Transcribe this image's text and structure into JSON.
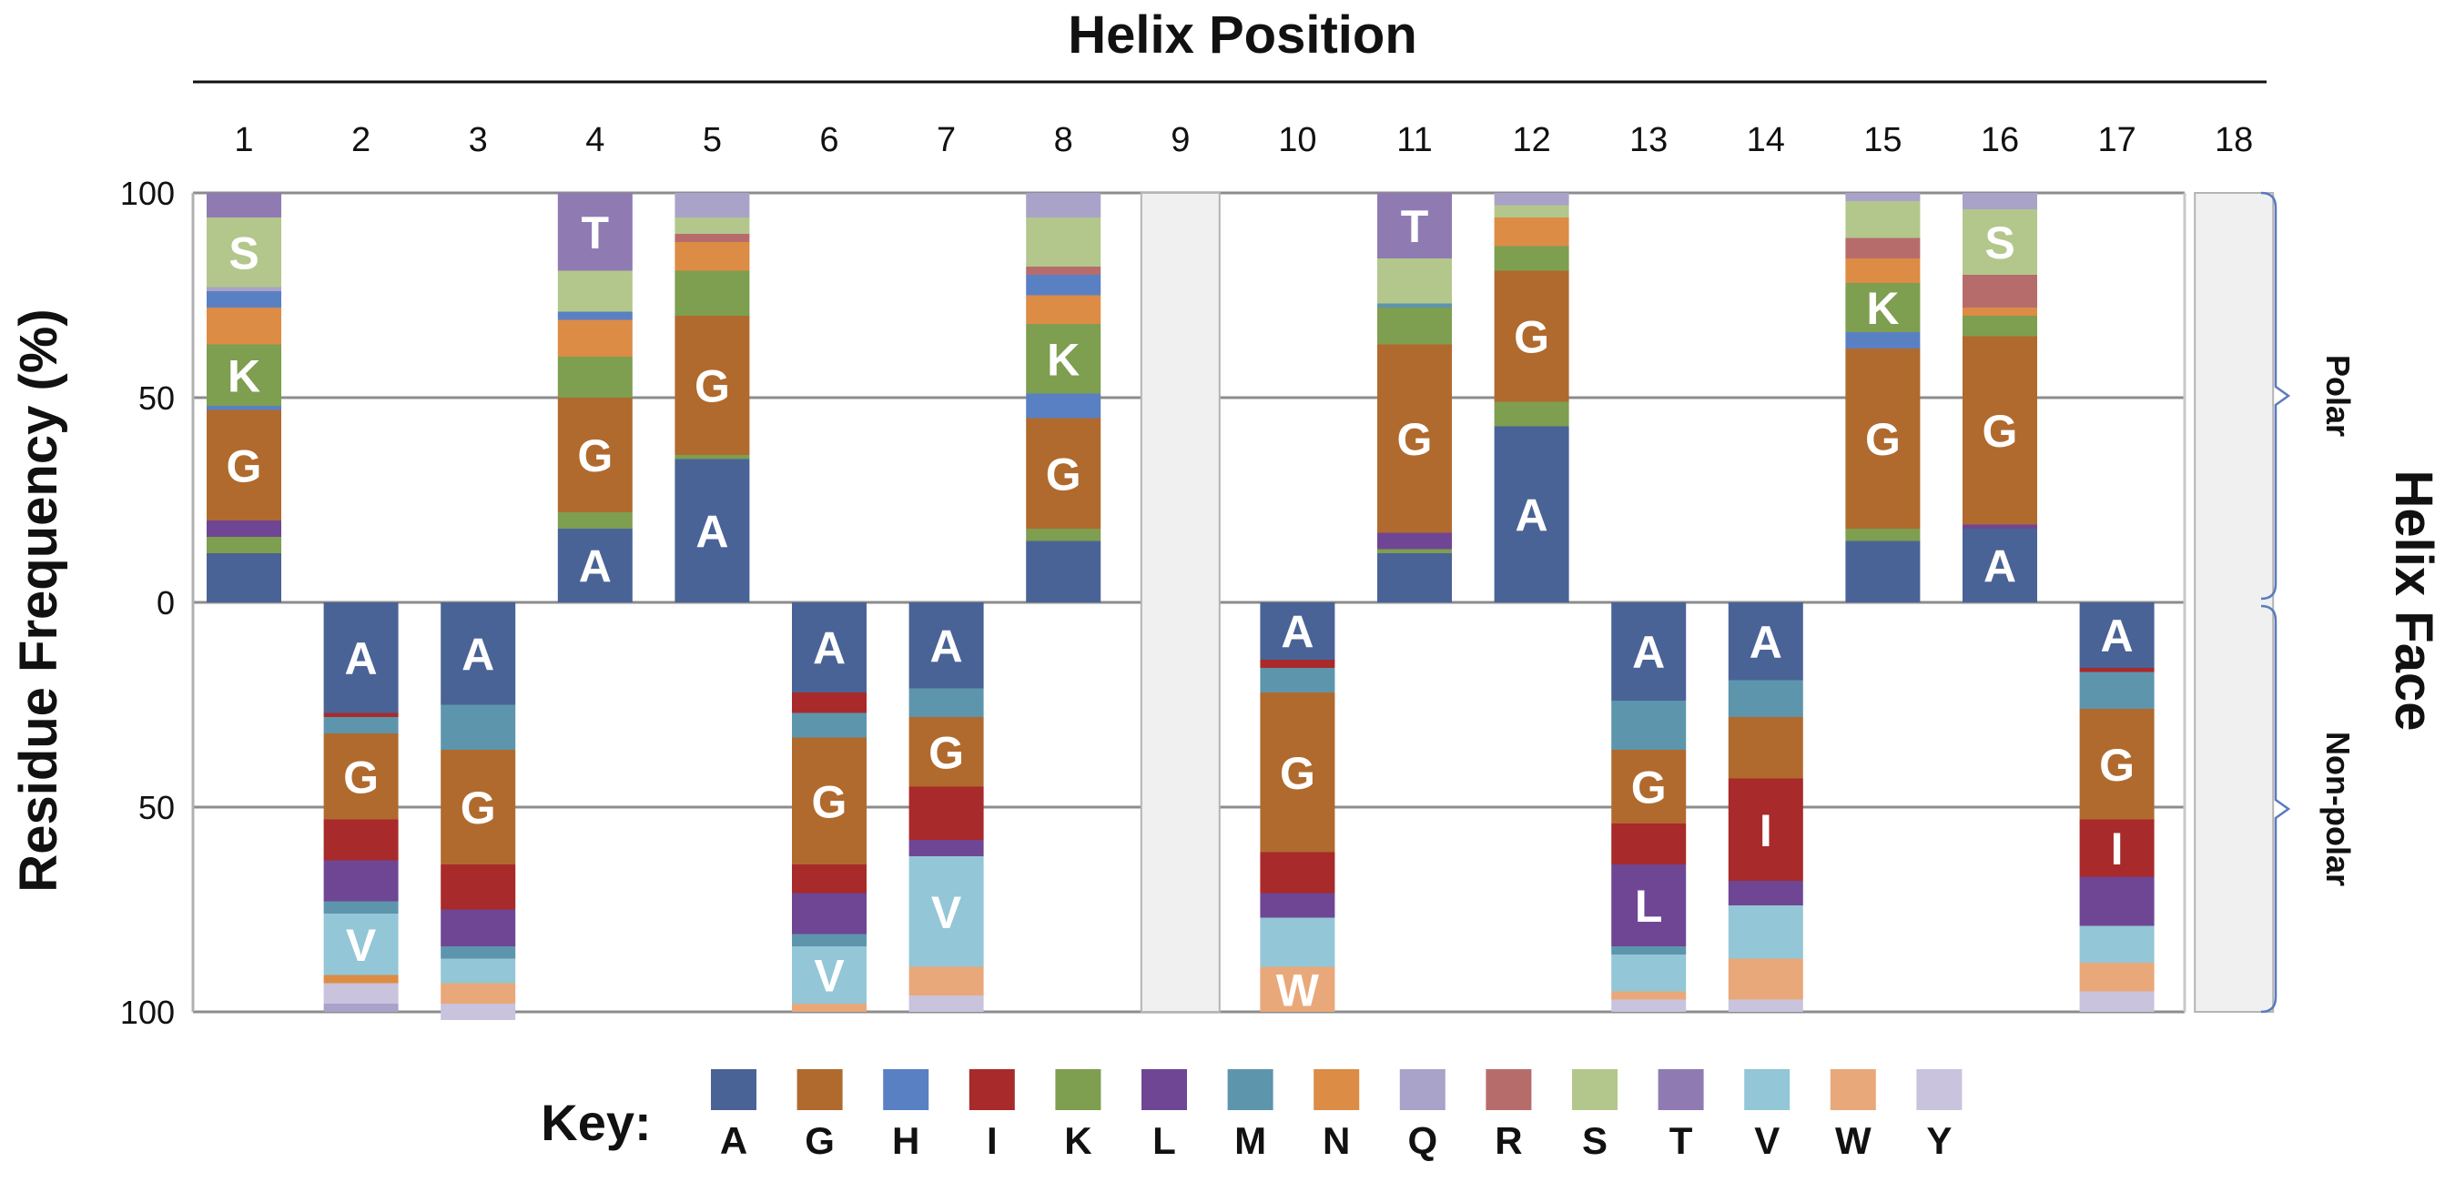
{
  "chart_data": {
    "type": "bar",
    "title": "Helix Position",
    "ylabel": "Residue Frequency  (%)",
    "right_label": "Helix Face",
    "ylim": [
      0,
      100
    ],
    "y_ticks_polar": [
      "100",
      "50",
      "0"
    ],
    "y_ticks_nonpolar": [
      "0",
      "50",
      "100"
    ],
    "categories": [
      "1",
      "2",
      "3",
      "4",
      "5",
      "6",
      "7",
      "8",
      "9",
      "10",
      "11",
      "12",
      "13",
      "14",
      "15",
      "16",
      "17",
      "18"
    ],
    "faces": [
      {
        "id": "polar",
        "label": "Polar",
        "positions": [
          "1",
          "4",
          "5",
          "8",
          "11",
          "12",
          "15",
          "16"
        ]
      },
      {
        "id": "nonpolar",
        "label": "Non-polar",
        "positions": [
          "2",
          "3",
          "6",
          "7",
          "10",
          "13",
          "14",
          "17"
        ]
      }
    ],
    "blank_positions": [
      "9",
      "18"
    ],
    "key_title": "Key:",
    "residues": [
      {
        "code": "A",
        "color": "#4a6396"
      },
      {
        "code": "G",
        "color": "#b06a2e"
      },
      {
        "code": "H",
        "color": "#5a80c4"
      },
      {
        "code": "I",
        "color": "#a82a2a"
      },
      {
        "code": "K",
        "color": "#7e9e50"
      },
      {
        "code": "L",
        "color": "#6f4694"
      },
      {
        "code": "M",
        "color": "#5d95ad"
      },
      {
        "code": "N",
        "color": "#dc8c45"
      },
      {
        "code": "Q",
        "color": "#a9a2c9"
      },
      {
        "code": "R",
        "color": "#b76c6c"
      },
      {
        "code": "S",
        "color": "#b3c78c"
      },
      {
        "code": "T",
        "color": "#8f7bb2"
      },
      {
        "code": "V",
        "color": "#93c6d6"
      },
      {
        "code": "W",
        "color": "#e9a87a"
      },
      {
        "code": "Y",
        "color": "#c9c3de"
      }
    ],
    "series": [
      {
        "position": "1",
        "face": "polar",
        "segments": [
          {
            "residue": "A",
            "value": 12,
            "label": ""
          },
          {
            "residue": "K",
            "value": 4,
            "label": ""
          },
          {
            "residue": "L",
            "value": 4,
            "label": ""
          },
          {
            "residue": "G",
            "value": 27,
            "label": "G"
          },
          {
            "residue": "H",
            "value": 1,
            "label": ""
          },
          {
            "residue": "K",
            "value": 15,
            "label": "K"
          },
          {
            "residue": "N",
            "value": 9,
            "label": ""
          },
          {
            "residue": "H",
            "value": 4,
            "label": ""
          },
          {
            "residue": "Q",
            "value": 1,
            "label": ""
          },
          {
            "residue": "S",
            "value": 17,
            "label": "S"
          },
          {
            "residue": "T",
            "value": 6,
            "label": ""
          }
        ]
      },
      {
        "position": "4",
        "face": "polar",
        "segments": [
          {
            "residue": "A",
            "value": 18,
            "label": "A"
          },
          {
            "residue": "K",
            "value": 4,
            "label": ""
          },
          {
            "residue": "G",
            "value": 28,
            "label": "G"
          },
          {
            "residue": "K",
            "value": 10,
            "label": ""
          },
          {
            "residue": "N",
            "value": 9,
            "label": ""
          },
          {
            "residue": "H",
            "value": 2,
            "label": ""
          },
          {
            "residue": "S",
            "value": 10,
            "label": ""
          },
          {
            "residue": "T",
            "value": 19,
            "label": "T"
          }
        ]
      },
      {
        "position": "5",
        "face": "polar",
        "segments": [
          {
            "residue": "A",
            "value": 35,
            "label": "A"
          },
          {
            "residue": "K",
            "value": 1,
            "label": ""
          },
          {
            "residue": "G",
            "value": 34,
            "label": "G"
          },
          {
            "residue": "K",
            "value": 11,
            "label": ""
          },
          {
            "residue": "N",
            "value": 7,
            "label": ""
          },
          {
            "residue": "R",
            "value": 2,
            "label": ""
          },
          {
            "residue": "S",
            "value": 4,
            "label": ""
          },
          {
            "residue": "Q",
            "value": 6,
            "label": ""
          }
        ]
      },
      {
        "position": "8",
        "face": "polar",
        "segments": [
          {
            "residue": "A",
            "value": 15,
            "label": ""
          },
          {
            "residue": "K",
            "value": 3,
            "label": ""
          },
          {
            "residue": "G",
            "value": 27,
            "label": "G"
          },
          {
            "residue": "H",
            "value": 6,
            "label": ""
          },
          {
            "residue": "K",
            "value": 17,
            "label": "K"
          },
          {
            "residue": "N",
            "value": 7,
            "label": ""
          },
          {
            "residue": "H",
            "value": 5,
            "label": ""
          },
          {
            "residue": "R",
            "value": 2,
            "label": ""
          },
          {
            "residue": "S",
            "value": 12,
            "label": ""
          },
          {
            "residue": "Q",
            "value": 6,
            "label": ""
          }
        ]
      },
      {
        "position": "11",
        "face": "polar",
        "segments": [
          {
            "residue": "A",
            "value": 12,
            "label": ""
          },
          {
            "residue": "K",
            "value": 1,
            "label": ""
          },
          {
            "residue": "L",
            "value": 4,
            "label": ""
          },
          {
            "residue": "G",
            "value": 46,
            "label": "G"
          },
          {
            "residue": "K",
            "value": 9,
            "label": ""
          },
          {
            "residue": "M",
            "value": 1,
            "label": ""
          },
          {
            "residue": "S",
            "value": 11,
            "label": ""
          },
          {
            "residue": "T",
            "value": 16,
            "label": "T"
          }
        ]
      },
      {
        "position": "12",
        "face": "polar",
        "segments": [
          {
            "residue": "A",
            "value": 43,
            "label": "A"
          },
          {
            "residue": "K",
            "value": 6,
            "label": ""
          },
          {
            "residue": "G",
            "value": 32,
            "label": "G"
          },
          {
            "residue": "K",
            "value": 6,
            "label": ""
          },
          {
            "residue": "N",
            "value": 7,
            "label": ""
          },
          {
            "residue": "S",
            "value": 3,
            "label": ""
          },
          {
            "residue": "Q",
            "value": 3,
            "label": ""
          }
        ]
      },
      {
        "position": "15",
        "face": "polar",
        "segments": [
          {
            "residue": "A",
            "value": 15,
            "label": ""
          },
          {
            "residue": "K",
            "value": 3,
            "label": ""
          },
          {
            "residue": "G",
            "value": 44,
            "label": "G"
          },
          {
            "residue": "H",
            "value": 4,
            "label": ""
          },
          {
            "residue": "K",
            "value": 12,
            "label": "K"
          },
          {
            "residue": "N",
            "value": 6,
            "label": ""
          },
          {
            "residue": "R",
            "value": 5,
            "label": ""
          },
          {
            "residue": "S",
            "value": 9,
            "label": ""
          },
          {
            "residue": "Q",
            "value": 2,
            "label": ""
          }
        ]
      },
      {
        "position": "16",
        "face": "polar",
        "segments": [
          {
            "residue": "A",
            "value": 18,
            "label": "A"
          },
          {
            "residue": "L",
            "value": 1,
            "label": ""
          },
          {
            "residue": "G",
            "value": 46,
            "label": "G"
          },
          {
            "residue": "K",
            "value": 5,
            "label": ""
          },
          {
            "residue": "N",
            "value": 2,
            "label": ""
          },
          {
            "residue": "R",
            "value": 8,
            "label": ""
          },
          {
            "residue": "S",
            "value": 16,
            "label": "S"
          },
          {
            "residue": "Q",
            "value": 4,
            "label": ""
          }
        ]
      },
      {
        "position": "2",
        "face": "nonpolar",
        "segments": [
          {
            "residue": "A",
            "value": 27,
            "label": "A"
          },
          {
            "residue": "I",
            "value": 1,
            "label": ""
          },
          {
            "residue": "M",
            "value": 4,
            "label": ""
          },
          {
            "residue": "G",
            "value": 21,
            "label": "G"
          },
          {
            "residue": "I",
            "value": 10,
            "label": ""
          },
          {
            "residue": "L",
            "value": 10,
            "label": ""
          },
          {
            "residue": "M",
            "value": 3,
            "label": ""
          },
          {
            "residue": "V",
            "value": 15,
            "label": "V"
          },
          {
            "residue": "N",
            "value": 2,
            "label": ""
          },
          {
            "residue": "Y",
            "value": 5,
            "label": ""
          },
          {
            "residue": "Q",
            "value": 2,
            "label": ""
          }
        ]
      },
      {
        "position": "3",
        "face": "nonpolar",
        "segments": [
          {
            "residue": "A",
            "value": 25,
            "label": "A"
          },
          {
            "residue": "M",
            "value": 11,
            "label": ""
          },
          {
            "residue": "G",
            "value": 28,
            "label": "G"
          },
          {
            "residue": "I",
            "value": 11,
            "label": ""
          },
          {
            "residue": "L",
            "value": 9,
            "label": ""
          },
          {
            "residue": "M",
            "value": 3,
            "label": ""
          },
          {
            "residue": "V",
            "value": 6,
            "label": ""
          },
          {
            "residue": "W",
            "value": 5,
            "label": ""
          },
          {
            "residue": "Y",
            "value": 4,
            "label": ""
          }
        ]
      },
      {
        "position": "6",
        "face": "nonpolar",
        "segments": [
          {
            "residue": "A",
            "value": 22,
            "label": "A"
          },
          {
            "residue": "I",
            "value": 5,
            "label": ""
          },
          {
            "residue": "M",
            "value": 6,
            "label": ""
          },
          {
            "residue": "G",
            "value": 31,
            "label": "G"
          },
          {
            "residue": "I",
            "value": 7,
            "label": ""
          },
          {
            "residue": "L",
            "value": 10,
            "label": ""
          },
          {
            "residue": "M",
            "value": 3,
            "label": ""
          },
          {
            "residue": "V",
            "value": 14,
            "label": "V"
          },
          {
            "residue": "W",
            "value": 2,
            "label": ""
          }
        ]
      },
      {
        "position": "7",
        "face": "nonpolar",
        "segments": [
          {
            "residue": "A",
            "value": 21,
            "label": "A"
          },
          {
            "residue": "M",
            "value": 7,
            "label": ""
          },
          {
            "residue": "G",
            "value": 17,
            "label": "G"
          },
          {
            "residue": "I",
            "value": 13,
            "label": ""
          },
          {
            "residue": "L",
            "value": 4,
            "label": ""
          },
          {
            "residue": "V",
            "value": 27,
            "label": "V"
          },
          {
            "residue": "W",
            "value": 7,
            "label": ""
          },
          {
            "residue": "Y",
            "value": 4,
            "label": ""
          }
        ]
      },
      {
        "position": "10",
        "face": "nonpolar",
        "segments": [
          {
            "residue": "A",
            "value": 14,
            "label": "A"
          },
          {
            "residue": "I",
            "value": 2,
            "label": ""
          },
          {
            "residue": "M",
            "value": 6,
            "label": ""
          },
          {
            "residue": "G",
            "value": 39,
            "label": "G"
          },
          {
            "residue": "I",
            "value": 10,
            "label": ""
          },
          {
            "residue": "L",
            "value": 6,
            "label": ""
          },
          {
            "residue": "V",
            "value": 12,
            "label": ""
          },
          {
            "residue": "W",
            "value": 11,
            "label": "W"
          }
        ]
      },
      {
        "position": "13",
        "face": "nonpolar",
        "segments": [
          {
            "residue": "A",
            "value": 24,
            "label": "A"
          },
          {
            "residue": "M",
            "value": 12,
            "label": ""
          },
          {
            "residue": "G",
            "value": 18,
            "label": "G"
          },
          {
            "residue": "I",
            "value": 10,
            "label": ""
          },
          {
            "residue": "L",
            "value": 20,
            "label": "L"
          },
          {
            "residue": "M",
            "value": 2,
            "label": ""
          },
          {
            "residue": "V",
            "value": 9,
            "label": ""
          },
          {
            "residue": "W",
            "value": 2,
            "label": ""
          },
          {
            "residue": "Y",
            "value": 3,
            "label": ""
          }
        ]
      },
      {
        "position": "14",
        "face": "nonpolar",
        "segments": [
          {
            "residue": "A",
            "value": 19,
            "label": "A"
          },
          {
            "residue": "M",
            "value": 9,
            "label": ""
          },
          {
            "residue": "G",
            "value": 15,
            "label": ""
          },
          {
            "residue": "I",
            "value": 25,
            "label": "I"
          },
          {
            "residue": "L",
            "value": 6,
            "label": ""
          },
          {
            "residue": "V",
            "value": 13,
            "label": ""
          },
          {
            "residue": "W",
            "value": 10,
            "label": ""
          },
          {
            "residue": "Y",
            "value": 3,
            "label": ""
          }
        ]
      },
      {
        "position": "17",
        "face": "nonpolar",
        "segments": [
          {
            "residue": "A",
            "value": 16,
            "label": "A"
          },
          {
            "residue": "I",
            "value": 1,
            "label": ""
          },
          {
            "residue": "M",
            "value": 9,
            "label": ""
          },
          {
            "residue": "G",
            "value": 27,
            "label": "G"
          },
          {
            "residue": "I",
            "value": 14,
            "label": "I"
          },
          {
            "residue": "L",
            "value": 12,
            "label": ""
          },
          {
            "residue": "V",
            "value": 9,
            "label": ""
          },
          {
            "residue": "W",
            "value": 7,
            "label": ""
          },
          {
            "residue": "Y",
            "value": 5,
            "label": ""
          }
        ]
      }
    ]
  }
}
